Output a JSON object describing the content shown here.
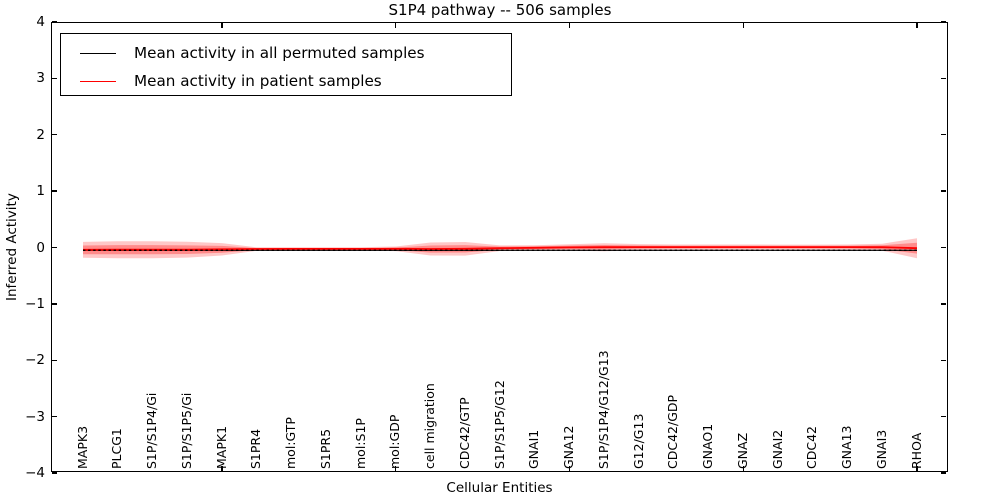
{
  "title": "S1P4 pathway -- 506 samples",
  "axes": {
    "xlabel": "Cellular Entities",
    "ylabel": "Inferred Activity"
  },
  "legend": {
    "items": [
      {
        "label": "Mean activity in all permuted samples",
        "color": "#000000"
      },
      {
        "label": "Mean activity in patient samples",
        "color": "#ff0000"
      }
    ]
  },
  "chart_data": {
    "type": "line",
    "title": "S1P4 pathway -- 506 samples",
    "xlabel": "Cellular Entities",
    "ylabel": "Inferred Activity",
    "ylim": [
      -4,
      4
    ],
    "xlim": [
      0,
      26
    ],
    "grid": false,
    "legend_position": "upper left",
    "yticks": [
      4,
      3,
      2,
      1,
      0,
      -1,
      -2,
      -3,
      -4
    ],
    "xtick_positions": [
      5,
      10,
      15,
      20,
      25
    ],
    "categories": [
      "MAPK3",
      "PLCG1",
      "S1P/S1P4/Gi",
      "S1P/S1P5/Gi",
      "MAPK1",
      "S1PR4",
      "mol:GTP",
      "S1PR5",
      "mol:S1P",
      "mol:GDP",
      "cell migration",
      "CDC42/GTP",
      "S1P/S1P5/G12",
      "GNAI1",
      "GNA12",
      "S1P/S1P4/G12/G13",
      "G12/G13",
      "CDC42/GDP",
      "GNAO1",
      "GNAZ",
      "GNAI2",
      "CDC42",
      "GNA13",
      "GNAI3",
      "RHOA"
    ],
    "series": [
      {
        "name": "Mean activity in all permuted samples",
        "color": "#000000",
        "style": "solid-with-dotted-overlay",
        "values": [
          -0.05,
          -0.05,
          -0.05,
          -0.05,
          -0.05,
          -0.05,
          -0.05,
          -0.05,
          -0.05,
          -0.05,
          -0.05,
          -0.05,
          -0.05,
          -0.05,
          -0.05,
          -0.05,
          -0.05,
          -0.05,
          -0.05,
          -0.05,
          -0.05,
          -0.05,
          -0.05,
          -0.05,
          -0.05
        ]
      },
      {
        "name": "Mean activity in patient samples",
        "color": "#ff0000",
        "style": "solid",
        "values": [
          -0.041,
          -0.039,
          -0.039,
          -0.039,
          -0.032,
          -0.027,
          -0.025,
          -0.025,
          -0.025,
          -0.023,
          -0.027,
          -0.023,
          -0.012,
          -0.005,
          0.002,
          0.005,
          0.007,
          0.007,
          0.007,
          0.007,
          0.007,
          0.007,
          0.007,
          0.005,
          -0.012
        ]
      }
    ],
    "band_color": "#ff0000",
    "band_outer_opacity": 0.22,
    "band_inner_opacity": 0.3,
    "band_outer_halfwidth": [
      0.14,
      0.15,
      0.15,
      0.14,
      0.11,
      0.03,
      0.03,
      0.03,
      0.03,
      0.04,
      0.115,
      0.12,
      0.05,
      0.046,
      0.057,
      0.07,
      0.053,
      0.046,
      0.046,
      0.046,
      0.044,
      0.044,
      0.046,
      0.062,
      0.177
    ],
    "band_inner_halfwidth": [
      0.077,
      0.082,
      0.082,
      0.077,
      0.06,
      0.017,
      0.017,
      0.017,
      0.017,
      0.022,
      0.063,
      0.066,
      0.028,
      0.025,
      0.031,
      0.039,
      0.029,
      0.025,
      0.025,
      0.025,
      0.024,
      0.024,
      0.025,
      0.034,
      0.097
    ]
  }
}
